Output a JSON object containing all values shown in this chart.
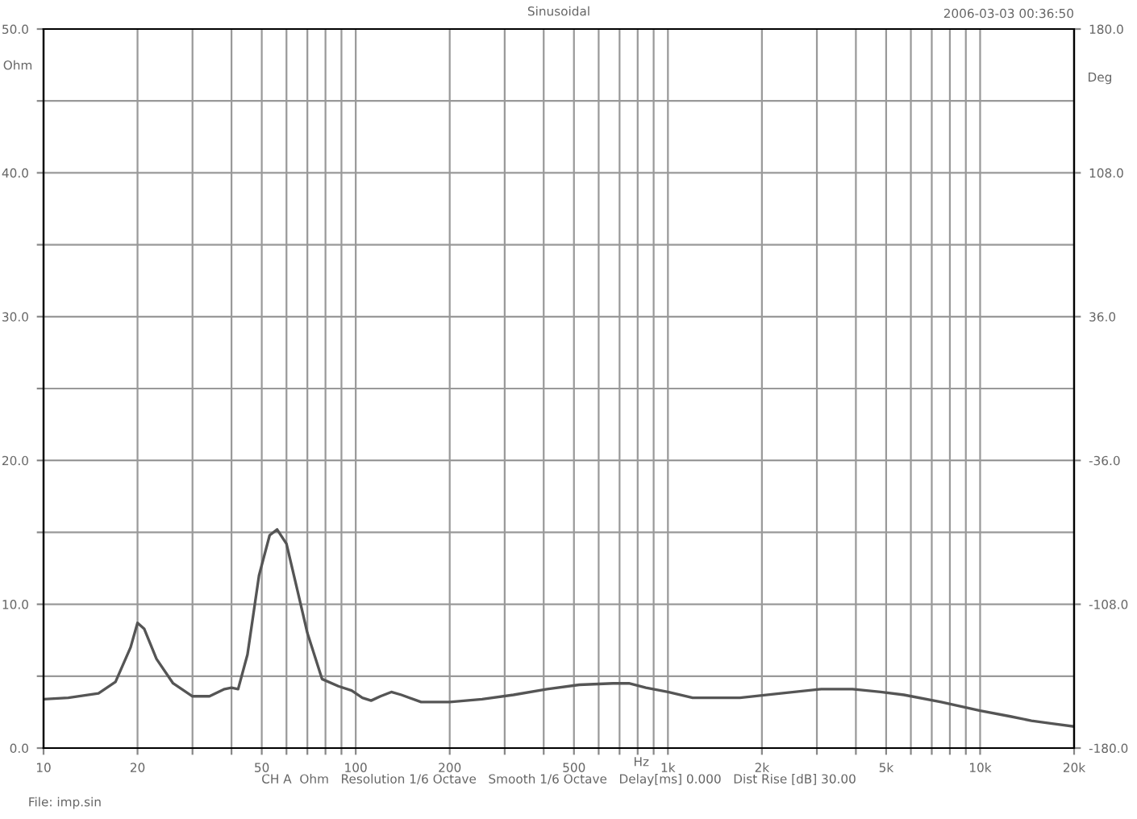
{
  "chart_data": {
    "type": "line",
    "title": "Sinusoidal",
    "xlabel": "Hz",
    "ylabel": "Ohm",
    "y2label": "Deg",
    "annotations": [
      "2006-03-03 00:36:50",
      "CH A  Ohm   Resolution 1/6 Octave   Smooth 1/6 Octave   Delay[ms] 0.000   Dist Rise [dB] 30.00",
      "File: imp.sin"
    ],
    "log": "x",
    "grid": true,
    "marker": "none",
    "line_style": "solid",
    "xlim": [
      10,
      20000
    ],
    "ylim": [
      0,
      50
    ],
    "y2lim": [
      -180,
      180
    ],
    "xticks": [
      10,
      20,
      {
        "value": 30,
        "label": null
      },
      {
        "value": 40,
        "label": null
      },
      50,
      {
        "value": 60,
        "label": null
      },
      {
        "value": 70,
        "label": null
      },
      {
        "value": 80,
        "label": null
      },
      {
        "value": 90,
        "label": null
      },
      100,
      200,
      {
        "value": 300,
        "label": null
      },
      {
        "value": 400,
        "label": null
      },
      500,
      {
        "value": 600,
        "label": null
      },
      {
        "value": 700,
        "label": null
      },
      {
        "value": 800,
        "label": null
      },
      {
        "value": 900,
        "label": null
      },
      {
        "value": 1000,
        "label": "1k"
      },
      {
        "value": 2000,
        "label": "2k"
      },
      {
        "value": 3000,
        "label": null
      },
      {
        "value": 4000,
        "label": null
      },
      {
        "value": 5000,
        "label": "5k"
      },
      {
        "value": 6000,
        "label": null
      },
      {
        "value": 7000,
        "label": null
      },
      {
        "value": 8000,
        "label": null
      },
      {
        "value": 9000,
        "label": null
      },
      {
        "value": 10000,
        "label": "10k"
      },
      {
        "value": 20000,
        "label": "20k"
      }
    ],
    "yticks": [
      {
        "value": 0,
        "label": "0.0"
      },
      {
        "value": 5,
        "label": null
      },
      {
        "value": 10,
        "label": "10.0"
      },
      {
        "value": 15,
        "label": null
      },
      {
        "value": 20,
        "label": "20.0"
      },
      {
        "value": 25,
        "label": null
      },
      {
        "value": 30,
        "label": "30.0"
      },
      {
        "value": 35,
        "label": null
      },
      {
        "value": 40,
        "label": "40.0"
      },
      {
        "value": 45,
        "label": null
      },
      {
        "value": 50,
        "label": "50.0"
      }
    ],
    "y2ticks": [
      {
        "value": -180,
        "label": "-180.0"
      },
      {
        "value": -108,
        "label": "-108.0"
      },
      {
        "value": -36,
        "label": "-36.0"
      },
      {
        "value": 36,
        "label": "36.0"
      },
      {
        "value": 108,
        "label": "108.0"
      },
      {
        "value": 180,
        "label": "180.0"
      }
    ],
    "series": [
      {
        "color": "#555555",
        "x": [
          10,
          12,
          15,
          17,
          19,
          20,
          21,
          23,
          26,
          30,
          34,
          38,
          40,
          42,
          45,
          49,
          53,
          56,
          60,
          65,
          70,
          78,
          88,
          97,
          105,
          112,
          120,
          130,
          140,
          162,
          200,
          254,
          320,
          410,
          520,
          667,
          750,
          850,
          1000,
          1200,
          1700,
          2300,
          3100,
          3900,
          4800,
          5700,
          7500,
          10000,
          12500,
          14600,
          17000,
          20000
        ],
        "values": [
          3.4,
          3.5,
          3.8,
          4.6,
          7.0,
          8.7,
          8.3,
          6.2,
          4.5,
          3.6,
          3.6,
          4.1,
          4.2,
          4.1,
          6.5,
          12.0,
          14.8,
          15.2,
          14.2,
          11.0,
          8.0,
          4.8,
          4.3,
          4.0,
          3.5,
          3.3,
          3.6,
          3.9,
          3.7,
          3.2,
          3.2,
          3.4,
          3.7,
          4.1,
          4.4,
          4.5,
          4.5,
          4.2,
          3.9,
          3.5,
          3.5,
          3.8,
          4.1,
          4.1,
          3.9,
          3.7,
          3.2,
          2.6,
          2.2,
          1.9,
          1.7,
          1.5
        ]
      }
    ]
  }
}
